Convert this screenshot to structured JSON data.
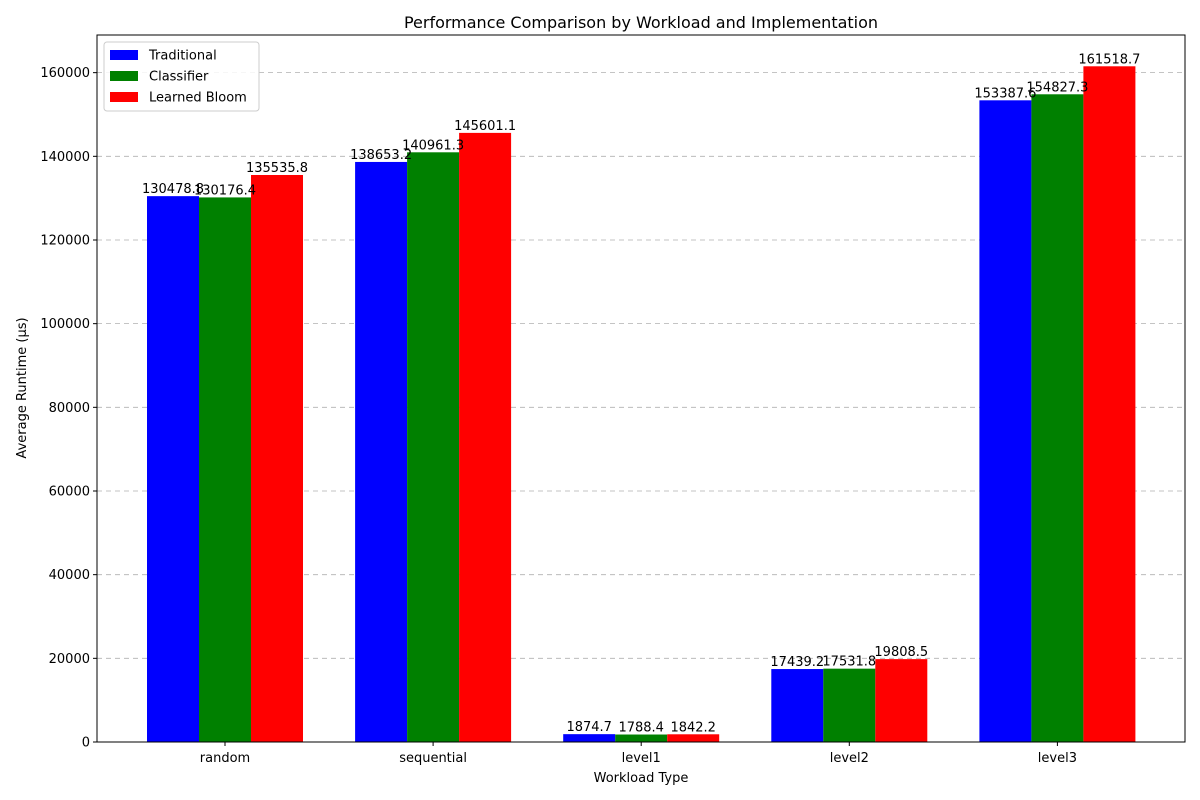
{
  "chart_data": {
    "type": "bar",
    "title": "Performance Comparison by Workload and Implementation",
    "xlabel": "Workload Type",
    "ylabel": "Average Runtime (µs)",
    "categories": [
      "random",
      "sequential",
      "level1",
      "level2",
      "level3"
    ],
    "series": [
      {
        "name": "Traditional",
        "color": "#0000ff",
        "values": [
          130478.8,
          138653.2,
          1874.7,
          17439.2,
          153387.6
        ]
      },
      {
        "name": "Classifier",
        "color": "#008000",
        "values": [
          130176.4,
          140961.3,
          1788.4,
          17531.8,
          154827.3
        ]
      },
      {
        "name": "Learned Bloom",
        "color": "#ff0000",
        "values": [
          135535.8,
          145601.1,
          1842.2,
          19808.5,
          161518.7
        ]
      }
    ],
    "data_labels": [
      [
        "130478.8",
        "138653.2",
        "1874.7",
        "17439.2",
        "153387.6"
      ],
      [
        "130176.4",
        "140961.3",
        "1788.4",
        "17531.8",
        "154827.3"
      ],
      [
        "135535.8",
        "145601.1",
        "1842.2",
        "19808.5",
        "161518.7"
      ]
    ],
    "ylim": [
      0,
      169000
    ],
    "yticks": [
      0,
      20000,
      40000,
      60000,
      80000,
      100000,
      120000,
      140000,
      160000
    ],
    "ytick_labels": [
      "0",
      "20000",
      "40000",
      "60000",
      "80000",
      "100000",
      "120000",
      "140000",
      "160000"
    ],
    "grid": "y-dashed",
    "legend_position": "upper-left"
  }
}
